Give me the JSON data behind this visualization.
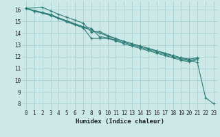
{
  "title": "",
  "xlabel": "Humidex (Indice chaleur)",
  "xlim": [
    -0.5,
    23.5
  ],
  "ylim": [
    7.5,
    16.7
  ],
  "bg_color": "#cce9e8",
  "grid_color": "#aad4d2",
  "line_color": "#2d7c78",
  "lines": [
    {
      "x": [
        0,
        1,
        2,
        3,
        4,
        5,
        6,
        7,
        8,
        9,
        10,
        11,
        12,
        13,
        14,
        15,
        16,
        17,
        18,
        19,
        20,
        21,
        22,
        23
      ],
      "y": [
        16.1,
        15.85,
        15.7,
        15.5,
        15.25,
        15.0,
        14.75,
        14.5,
        14.25,
        14.0,
        13.75,
        13.5,
        13.3,
        13.1,
        12.9,
        12.7,
        12.5,
        12.3,
        12.1,
        11.9,
        11.7,
        11.5,
        8.5,
        8.0
      ]
    },
    {
      "x": [
        0,
        2,
        3,
        4,
        5,
        6,
        7,
        8,
        9,
        10,
        11,
        12,
        13,
        14,
        15,
        16,
        17,
        18,
        19,
        20,
        21
      ],
      "y": [
        16.1,
        16.2,
        15.9,
        15.6,
        15.35,
        15.1,
        14.85,
        14.1,
        14.15,
        13.8,
        13.55,
        13.3,
        13.1,
        12.9,
        12.7,
        12.5,
        12.3,
        12.1,
        11.9,
        11.8,
        11.9
      ]
    },
    {
      "x": [
        0,
        2,
        3,
        4,
        5,
        6,
        7,
        8,
        9,
        10,
        11,
        12,
        13,
        14,
        15,
        16,
        17,
        18,
        19,
        20,
        21
      ],
      "y": [
        16.1,
        15.75,
        15.6,
        15.3,
        15.05,
        14.8,
        14.55,
        14.4,
        13.7,
        13.6,
        13.4,
        13.2,
        13.0,
        12.8,
        12.6,
        12.4,
        12.2,
        12.0,
        11.8,
        11.65,
        11.85
      ]
    },
    {
      "x": [
        0,
        2,
        3,
        4,
        5,
        6,
        7,
        8,
        9,
        10,
        11,
        12,
        13,
        14,
        15,
        16,
        17,
        18,
        19,
        20,
        21
      ],
      "y": [
        16.1,
        15.75,
        15.55,
        15.25,
        14.95,
        14.7,
        14.45,
        13.55,
        13.55,
        13.55,
        13.35,
        13.1,
        12.9,
        12.7,
        12.5,
        12.3,
        12.1,
        11.9,
        11.7,
        11.55,
        11.75
      ]
    }
  ],
  "xticks": [
    0,
    1,
    2,
    3,
    4,
    5,
    6,
    7,
    8,
    9,
    10,
    11,
    12,
    13,
    14,
    15,
    16,
    17,
    18,
    19,
    20,
    21,
    22,
    23
  ],
  "yticks": [
    8,
    9,
    10,
    11,
    12,
    13,
    14,
    15,
    16
  ],
  "tick_fontsize": 5.5,
  "label_fontsize": 6.5
}
